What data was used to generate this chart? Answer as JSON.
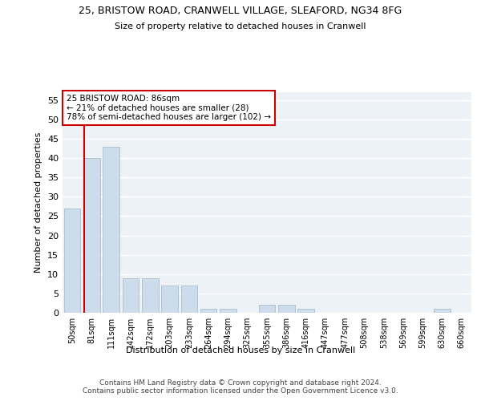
{
  "title_line1": "25, BRISTOW ROAD, CRANWELL VILLAGE, SLEAFORD, NG34 8FG",
  "title_line2": "Size of property relative to detached houses in Cranwell",
  "xlabel": "Distribution of detached houses by size in Cranwell",
  "ylabel": "Number of detached properties",
  "bar_labels": [
    "50sqm",
    "81sqm",
    "111sqm",
    "142sqm",
    "172sqm",
    "203sqm",
    "233sqm",
    "264sqm",
    "294sqm",
    "325sqm",
    "355sqm",
    "386sqm",
    "416sqm",
    "447sqm",
    "477sqm",
    "508sqm",
    "538sqm",
    "569sqm",
    "599sqm",
    "630sqm",
    "660sqm"
  ],
  "bar_values": [
    27,
    40,
    43,
    9,
    9,
    7,
    7,
    1,
    1,
    0,
    2,
    2,
    1,
    0,
    0,
    0,
    0,
    0,
    0,
    1,
    0
  ],
  "bar_color": "#cddceb",
  "bar_edgecolor": "#aabdce",
  "ylim": [
    0,
    57
  ],
  "yticks": [
    0,
    5,
    10,
    15,
    20,
    25,
    30,
    35,
    40,
    45,
    50,
    55
  ],
  "red_line_color": "#cc0000",
  "annotation_text": "25 BRISTOW ROAD: 86sqm\n← 21% of detached houses are smaller (28)\n78% of semi-detached houses are larger (102) →",
  "annotation_box_color": "#ffffff",
  "annotation_box_edgecolor": "#cc0000",
  "footer_text": "Contains HM Land Registry data © Crown copyright and database right 2024.\nContains public sector information licensed under the Open Government Licence v3.0.",
  "background_color": "#edf2f7",
  "grid_color": "#ffffff"
}
